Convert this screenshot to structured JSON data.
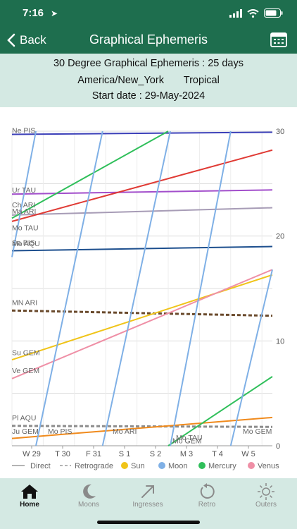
{
  "status": {
    "time": "7:16"
  },
  "nav": {
    "back_label": "Back",
    "title": "Graphical Ephemeris"
  },
  "info": {
    "line1": "30 Degree Graphical Ephemeris : 25 days",
    "line2_tz": "America/New_York",
    "line2_zodiac": "Tropical",
    "line3": "Start date : 29-May-2024"
  },
  "chart_data": {
    "type": "line",
    "ylim": [
      0,
      30
    ],
    "y_ticks": [
      "0",
      "10",
      "20",
      "30"
    ],
    "x_ticks": [
      "W 29",
      "T 30",
      "F 31",
      "S 1",
      "S 2",
      "M 3",
      "T 4",
      "W 5"
    ],
    "planet_labels": [
      {
        "text": "Ne PIS",
        "y": 29.7
      },
      {
        "text": "Ur TAU",
        "y": 24.0
      },
      {
        "text": "Ch ARI",
        "y": 22.6
      },
      {
        "text": "Ma ARI",
        "y": 22.0
      },
      {
        "text": "Mo TAU",
        "y": 20.4
      },
      {
        "text": "Sa PIS",
        "y": 19.0
      },
      {
        "text": "Mo AQU",
        "y": 18.9
      },
      {
        "text": "MN ARI",
        "y": 13.3
      },
      {
        "text": "Su GEM",
        "y": 8.5
      },
      {
        "text": "Ve GEM",
        "y": 6.8
      },
      {
        "text": "Pl AQU",
        "y": 2.3
      },
      {
        "text": "Ju GEM",
        "y": 1.0
      },
      {
        "text": "Mo PIS",
        "y": 1.0
      },
      {
        "text": "Mo ARI",
        "y": 1.0
      },
      {
        "text": "Mo TAU",
        "y": 0.4
      },
      {
        "text": "Mo GEM",
        "y": 0.1
      },
      {
        "text": "Mo GEM",
        "y": 1.0
      }
    ],
    "series": [
      {
        "name": "Neptune",
        "color": "#3b3fb8",
        "style": "solid",
        "x": [
          0,
          25
        ],
        "y": [
          29.7,
          29.9
        ]
      },
      {
        "name": "Uranus",
        "color": "#a24ecb",
        "style": "solid",
        "x": [
          0,
          25
        ],
        "y": [
          24.0,
          24.4
        ]
      },
      {
        "name": "Chiron",
        "color": "#a79cb6",
        "style": "solid",
        "x": [
          0,
          25
        ],
        "y": [
          22.0,
          22.7
        ]
      },
      {
        "name": "Mars",
        "color": "#e03a34",
        "style": "solid",
        "x": [
          0,
          25
        ],
        "y": [
          21.4,
          28.2
        ]
      },
      {
        "name": "Saturn",
        "color": "#1d4f8e",
        "style": "solid",
        "x": [
          0,
          25
        ],
        "y": [
          18.6,
          19.0
        ]
      },
      {
        "name": "Mean Node",
        "color": "#6a4a2c",
        "style": "dashed",
        "x": [
          0,
          25
        ],
        "y": [
          12.9,
          12.4
        ]
      },
      {
        "name": "Pluto",
        "color": "#8c8c8c",
        "style": "dashed",
        "x": [
          0,
          25
        ],
        "y": [
          1.9,
          1.8
        ]
      },
      {
        "name": "Jupiter",
        "color": "#f08a1c",
        "style": "solid",
        "x": [
          0,
          25
        ],
        "y": [
          0.7,
          2.7
        ]
      },
      {
        "name": "Sun",
        "color": "#f0c419",
        "style": "solid",
        "x": [
          0,
          25
        ],
        "y": [
          8.2,
          16.3
        ]
      },
      {
        "name": "Venus",
        "color": "#ef8fa6",
        "style": "solid",
        "x": [
          0,
          25
        ],
        "y": [
          6.4,
          16.8
        ]
      },
      {
        "name": "Mercury",
        "color": "#2fbf5a",
        "style": "solid",
        "x": [
          0,
          15
        ],
        "y": [
          21.7,
          30
        ]
      },
      {
        "name": "Mercury",
        "color": "#2fbf5a",
        "style": "solid",
        "x": [
          15,
          25
        ],
        "y": [
          0,
          6.6
        ]
      },
      {
        "name": "Moon",
        "color": "#7fb0e6",
        "style": "solid",
        "x": [
          0,
          2.3
        ],
        "y": [
          18.0,
          30
        ]
      },
      {
        "name": "Moon",
        "color": "#7fb0e6",
        "style": "solid",
        "x": [
          2.3,
          8.7
        ],
        "y": [
          0,
          30
        ]
      },
      {
        "name": "Moon",
        "color": "#7fb0e6",
        "style": "solid",
        "x": [
          8.7,
          15.2
        ],
        "y": [
          0,
          30
        ]
      },
      {
        "name": "Moon",
        "color": "#7fb0e6",
        "style": "solid",
        "x": [
          15.2,
          21.0
        ],
        "y": [
          0,
          30
        ]
      },
      {
        "name": "Moon",
        "color": "#7fb0e6",
        "style": "solid",
        "x": [
          21.0,
          25
        ],
        "y": [
          0,
          16.8
        ]
      }
    ],
    "legend": [
      {
        "label": "Direct",
        "kind": "line",
        "color": "#9a9a9a"
      },
      {
        "label": "Retrograde",
        "kind": "dash",
        "color": "#9a9a9a"
      },
      {
        "label": "Sun",
        "kind": "dot",
        "color": "#f0c419"
      },
      {
        "label": "Moon",
        "kind": "dot",
        "color": "#7fb0e6"
      },
      {
        "label": "Mercury",
        "kind": "dot",
        "color": "#2fbf5a"
      },
      {
        "label": "Venus",
        "kind": "dot",
        "color": "#ef8fa6"
      }
    ]
  },
  "tabs": [
    {
      "label": "Home",
      "icon": "home-icon",
      "active": true
    },
    {
      "label": "Moons",
      "icon": "moon-icon",
      "active": false
    },
    {
      "label": "Ingresses",
      "icon": "arrow-icon",
      "active": false
    },
    {
      "label": "Retro",
      "icon": "retro-icon",
      "active": false
    },
    {
      "label": "Outers",
      "icon": "sun-icon",
      "active": false
    }
  ],
  "colors": {
    "bar": "#1e6e4e",
    "panel": "#d4e9e3"
  }
}
